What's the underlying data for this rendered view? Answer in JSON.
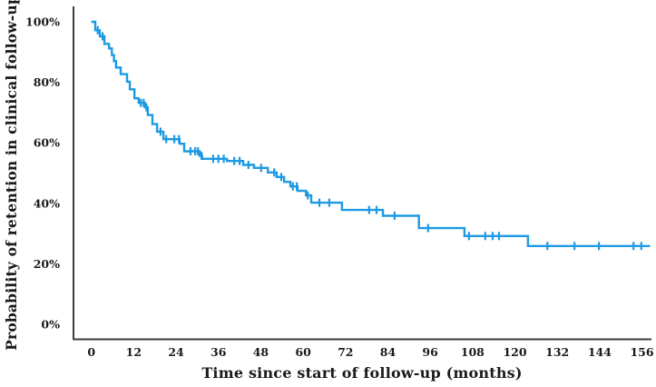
{
  "chart_data": {
    "type": "line",
    "subtype": "kaplan-meier-step-curve",
    "title": "",
    "xlabel": "Time since start of follow-up (months)",
    "ylabel": "Probability of retention in clinical follow-up",
    "x_ticks": [
      0,
      12,
      24,
      36,
      48,
      60,
      72,
      84,
      96,
      108,
      120,
      132,
      144,
      156
    ],
    "y_ticks": [
      {
        "label": "0%",
        "value": 0
      },
      {
        "label": "20%",
        "value": 20
      },
      {
        "label": "40%",
        "value": 40
      },
      {
        "label": "60%",
        "value": 60
      },
      {
        "label": "80%",
        "value": 80
      },
      {
        "label": "100%",
        "value": 100
      }
    ],
    "xlim": [
      0,
      158
    ],
    "ylim": [
      0,
      100
    ],
    "grid": false,
    "legend": "none",
    "line_color": "#1d9ae3",
    "axis_color": "#3d3d3d",
    "text_color": "#1a1a1a",
    "series": [
      {
        "name": "Retention in clinical follow-up",
        "end_month": 158.3,
        "steps": [
          [
            0,
            100
          ],
          [
            1.1,
            97.2
          ],
          [
            2.4,
            95.2
          ],
          [
            3.7,
            92.7
          ],
          [
            5.0,
            91.2
          ],
          [
            5.8,
            89.0
          ],
          [
            6.4,
            87.0
          ],
          [
            7.0,
            84.9
          ],
          [
            8.3,
            82.7
          ],
          [
            10.1,
            80.2
          ],
          [
            10.9,
            77.7
          ],
          [
            12.2,
            74.7
          ],
          [
            13.4,
            73.2
          ],
          [
            15.2,
            71.7
          ],
          [
            16.0,
            69.2
          ],
          [
            17.3,
            66.2
          ],
          [
            18.6,
            63.7
          ],
          [
            20.4,
            61.2
          ],
          [
            25.0,
            59.7
          ],
          [
            26.3,
            57.2
          ],
          [
            30.7,
            55.7
          ],
          [
            31.4,
            54.7
          ],
          [
            38.4,
            54.0
          ],
          [
            43.0,
            52.7
          ],
          [
            46.1,
            51.7
          ],
          [
            50.0,
            50.2
          ],
          [
            52.5,
            48.7
          ],
          [
            54.6,
            47.1
          ],
          [
            56.4,
            45.6
          ],
          [
            58.4,
            44.1
          ],
          [
            60.8,
            42.6
          ],
          [
            62.3,
            40.2
          ],
          [
            71.0,
            37.8
          ],
          [
            82.6,
            35.9
          ],
          [
            92.8,
            31.8
          ],
          [
            105.7,
            29.2
          ],
          [
            123.7,
            25.9
          ]
        ],
        "censor_marks": [
          [
            1.8,
            97.2
          ],
          [
            3.2,
            95.2
          ],
          [
            14.0,
            73.2
          ],
          [
            14.8,
            73.2
          ],
          [
            15.6,
            71.7
          ],
          [
            19.6,
            63.7
          ],
          [
            21.2,
            61.2
          ],
          [
            23.5,
            61.2
          ],
          [
            24.8,
            61.2
          ],
          [
            28.1,
            57.2
          ],
          [
            29.4,
            57.2
          ],
          [
            30.2,
            57.2
          ],
          [
            31.2,
            55.7
          ],
          [
            34.5,
            54.7
          ],
          [
            36.0,
            54.7
          ],
          [
            37.5,
            54.7
          ],
          [
            40.5,
            54.0
          ],
          [
            42.0,
            54.0
          ],
          [
            44.5,
            52.7
          ],
          [
            48.1,
            51.7
          ],
          [
            51.8,
            50.2
          ],
          [
            53.8,
            48.7
          ],
          [
            57.1,
            45.6
          ],
          [
            58.2,
            45.6
          ],
          [
            61.3,
            42.6
          ],
          [
            64.6,
            40.2
          ],
          [
            67.4,
            40.2
          ],
          [
            78.7,
            37.8
          ],
          [
            80.8,
            37.8
          ],
          [
            85.9,
            35.9
          ],
          [
            95.4,
            31.8
          ],
          [
            107.0,
            29.2
          ],
          [
            111.6,
            29.2
          ],
          [
            113.7,
            29.2
          ],
          [
            115.5,
            29.2
          ],
          [
            129.2,
            25.9
          ],
          [
            136.9,
            25.9
          ],
          [
            143.8,
            25.9
          ],
          [
            153.6,
            25.9
          ],
          [
            155.8,
            25.9
          ]
        ]
      }
    ]
  }
}
